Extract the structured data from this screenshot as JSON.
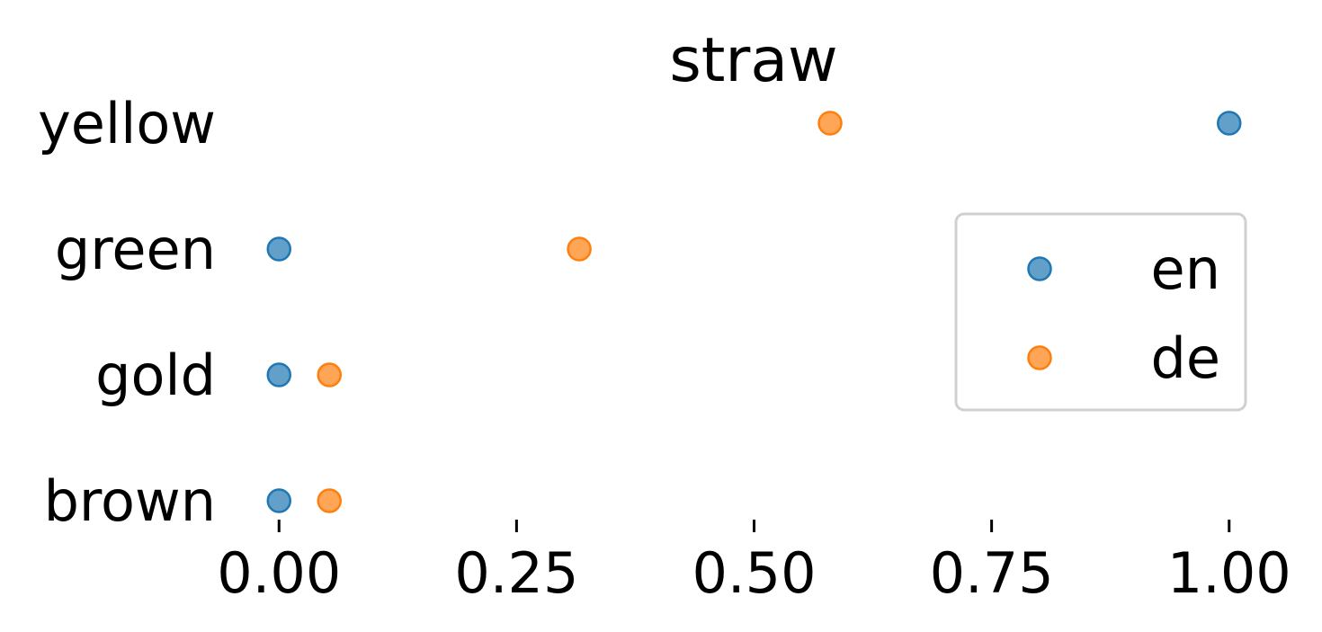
{
  "chart_data": {
    "type": "scatter",
    "title": "straw",
    "xlabel": "",
    "ylabel": "",
    "categories": [
      "yellow",
      "green",
      "gold",
      "brown"
    ],
    "xlim": [
      -0.04,
      1.04
    ],
    "xticks": [
      0.0,
      0.25,
      0.5,
      0.75,
      1.0
    ],
    "xtick_labels": [
      "0.00",
      "0.25",
      "0.50",
      "0.75",
      "1.00"
    ],
    "grid": false,
    "legend_position": "right",
    "series": [
      {
        "name": "en",
        "color": "#1f77b4",
        "values": [
          1.0,
          0.0,
          0.0,
          0.0
        ]
      },
      {
        "name": "de",
        "color": "#ff7f0e",
        "values": [
          0.58,
          0.316,
          0.053,
          0.053
        ]
      }
    ]
  }
}
